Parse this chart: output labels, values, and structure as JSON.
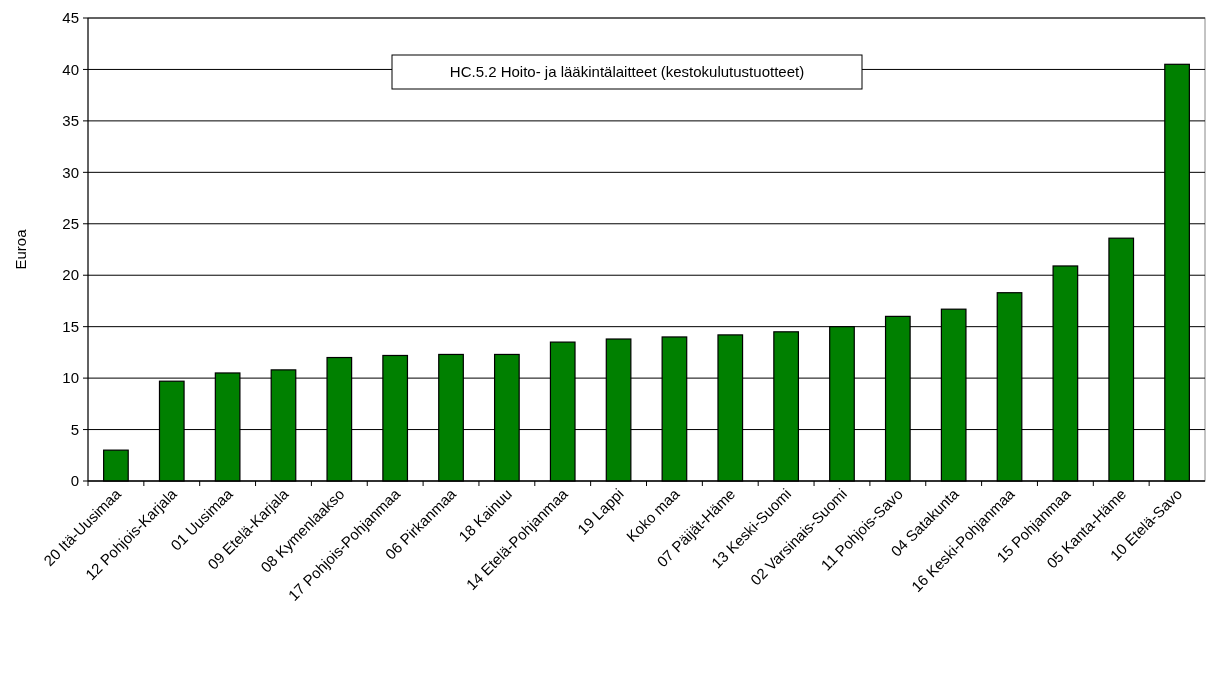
{
  "chart_data": {
    "type": "bar",
    "ylabel": "Euroa",
    "annotations": [
      "HC.5.2 Hoito- ja lääkintälaitteet (kestokulutustuotteet)"
    ],
    "categories": [
      "20 Itä-Uusimaa",
      "12 Pohjois-Karjala",
      "01 Uusimaa",
      "09 Etelä-Karjala",
      "08 Kymenlaakso",
      "17 Pohjois-Pohjanmaa",
      "06 Pirkanmaa",
      "18 Kainuu",
      "14 Etelä-Pohjanmaa",
      "19 Lappi",
      "Koko maa",
      "07 Päijät-Häme",
      "13 Keski-Suomi",
      "02 Varsinais-Suomi",
      "11 Pohjois-Savo",
      "04 Satakunta",
      "16 Keski-Pohjanmaa",
      "15 Pohjanmaa",
      "05 Kanta-Häme",
      "10 Etelä-Savo"
    ],
    "values": [
      3.0,
      9.7,
      10.5,
      10.8,
      12.0,
      12.2,
      12.3,
      12.3,
      13.5,
      13.8,
      14.0,
      14.2,
      14.5,
      15.0,
      16.0,
      16.7,
      18.3,
      20.9,
      23.6,
      40.5
    ],
    "color": "#008000",
    "ylim": [
      0,
      45
    ],
    "yticks": [
      0,
      5,
      10,
      15,
      20,
      25,
      30,
      35,
      40,
      45
    ],
    "grid": "y"
  }
}
